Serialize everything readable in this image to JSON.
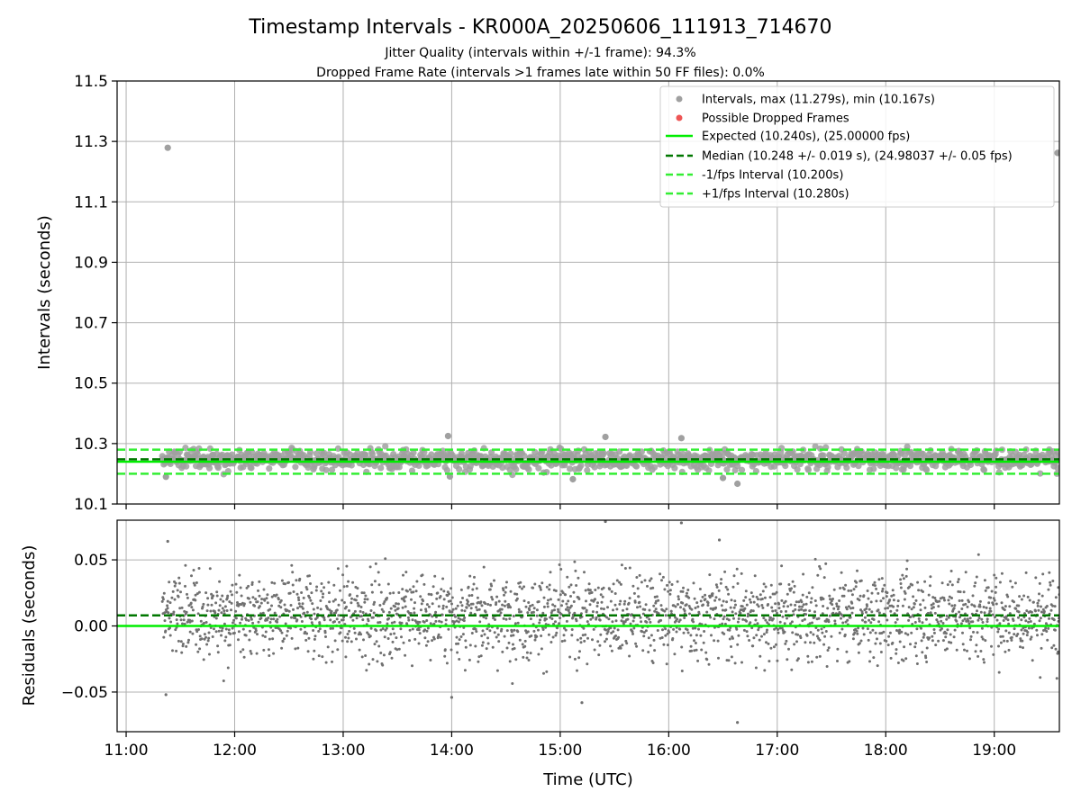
{
  "figure": {
    "title": "Timestamp Intervals - KR000A_20250606_111913_714670",
    "subtitle_1": "Jitter Quality (intervals within +/-1 frame): 94.3%",
    "subtitle_2": "Dropped Frame Rate (intervals >1 frames late within 50 FF files): 0.0%"
  },
  "colors": {
    "intervals": "#a0a0a0",
    "dropped": "#ee5555",
    "expected": "#00ee00",
    "median": "#007700",
    "bounds": "#33ee33",
    "residuals": "#707070",
    "grid": "#b0b0b0"
  },
  "chart_data": [
    {
      "type": "scatter",
      "panel": "intervals",
      "ylabel": "Intervals (seconds)",
      "xlim": [
        "10:55",
        "19:36"
      ],
      "ylim": [
        10.1,
        11.5
      ],
      "yticks": [
        "10.1",
        "10.3",
        "10.5",
        "10.7",
        "10.9",
        "11.1",
        "11.3",
        "11.5"
      ],
      "grid": true,
      "legend_position": "top-right",
      "legend": [
        {
          "label": "Intervals, max (11.279s), min (10.167s)",
          "marker": "dot",
          "color_key": "intervals"
        },
        {
          "label": "Possible Dropped Frames",
          "marker": "dot",
          "color_key": "dropped"
        },
        {
          "label": "Expected (10.240s), (25.00000 fps)",
          "marker": "solid",
          "color_key": "expected"
        },
        {
          "label": "Median (10.248 +/- 0.019 s), (24.98037 +/- 0.05 fps)",
          "marker": "dashed",
          "color_key": "median"
        },
        {
          "label": "-1/fps Interval (10.200s)",
          "marker": "dashed",
          "color_key": "bounds"
        },
        {
          "label": "+1/fps Interval (10.280s)",
          "marker": "dashed",
          "color_key": "bounds"
        }
      ],
      "reference_lines": [
        {
          "value": 10.24,
          "style": "solid",
          "color_key": "expected"
        },
        {
          "value": 10.248,
          "style": "dashed",
          "color_key": "median"
        },
        {
          "value": 10.2,
          "style": "dashed",
          "color_key": "bounds"
        },
        {
          "value": 10.28,
          "style": "dashed",
          "color_key": "bounds"
        }
      ],
      "series": {
        "expected": 10.24,
        "spread": 0.019,
        "time_range": [
          "11:20",
          "19:36"
        ],
        "max": 11.279,
        "min": 10.167,
        "outliers": [
          {
            "time": "11:23",
            "value": 11.279
          },
          {
            "time": "19:35",
            "value": 11.262
          },
          {
            "time": "13:58",
            "value": 10.325
          },
          {
            "time": "15:25",
            "value": 10.322
          },
          {
            "time": "16:07",
            "value": 10.318
          },
          {
            "time": "16:38",
            "value": 10.167
          },
          {
            "time": "16:30",
            "value": 10.186
          },
          {
            "time": "15:07",
            "value": 10.182
          },
          {
            "time": "11:22",
            "value": 10.19
          },
          {
            "time": "13:59",
            "value": 10.191
          }
        ]
      }
    },
    {
      "type": "scatter",
      "panel": "residuals",
      "xlabel": "Time (UTC)",
      "ylabel": "Residuals (seconds)",
      "xlim": [
        "10:55",
        "19:36"
      ],
      "ylim": [
        -0.08,
        0.08
      ],
      "xticks": [
        "11:00",
        "12:00",
        "13:00",
        "14:00",
        "15:00",
        "16:00",
        "17:00",
        "18:00",
        "19:00"
      ],
      "yticks": [
        "0.05",
        "0.00",
        "−0.05"
      ],
      "grid": true,
      "reference_lines": [
        {
          "value": 0.0,
          "style": "solid",
          "color_key": "expected"
        },
        {
          "value": 0.008,
          "style": "dashed",
          "color_key": "median"
        }
      ],
      "series": {
        "mean": 0.008,
        "spread": 0.019,
        "time_range": [
          "11:20",
          "19:36"
        ],
        "outliers": [
          {
            "time": "15:25",
            "value": 0.079
          },
          {
            "time": "16:07",
            "value": 0.078
          },
          {
            "time": "16:38",
            "value": -0.073
          },
          {
            "time": "14:00",
            "value": -0.054
          },
          {
            "time": "15:12",
            "value": -0.058
          },
          {
            "time": "11:22",
            "value": -0.052
          },
          {
            "time": "11:23",
            "value": 0.064
          },
          {
            "time": "16:28",
            "value": 0.065
          }
        ]
      }
    }
  ]
}
